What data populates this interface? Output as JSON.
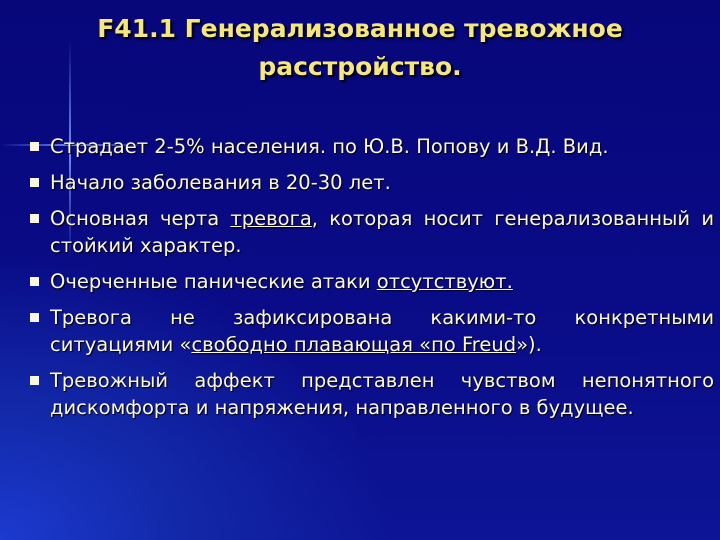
{
  "title": {
    "line1": "F41.1 Генерализованное тревожное",
    "line2": "расстройство."
  },
  "bullets": [
    {
      "segments": [
        {
          "text": "Страдает 2-5% населения. по Ю.В. Попову и В.Д. Вид.",
          "underline": false
        }
      ]
    },
    {
      "segments": [
        {
          "text": "Начало заболевания в 20-30 лет.",
          "underline": false
        }
      ]
    },
    {
      "segments": [
        {
          "text": "Основная черта ",
          "underline": false
        },
        {
          "text": "тревога",
          "underline": true
        },
        {
          "text": ", которая носит генерализованный и стойкий характер.",
          "underline": false
        }
      ]
    },
    {
      "segments": [
        {
          "text": " Очерченные панические атаки ",
          "underline": false
        },
        {
          "text": "отсутствуют.",
          "underline": true
        }
      ]
    },
    {
      "segments": [
        {
          "text": "Тревога не зафиксирована какими-то конкретными ситуациями «",
          "underline": false
        },
        {
          "text": "свободно плавающая «по Freud",
          "underline": true
        },
        {
          "text": "»).",
          "underline": false
        }
      ]
    },
    {
      "segments": [
        {
          "text": "Тревожный аффект представлен чувством непонятного дискомфорта и напряжения, направленного в будущее.",
          "underline": false
        }
      ]
    }
  ],
  "colors": {
    "title": "#f5e680",
    "text": "#fbf7dc",
    "background": "#0a0c88"
  }
}
